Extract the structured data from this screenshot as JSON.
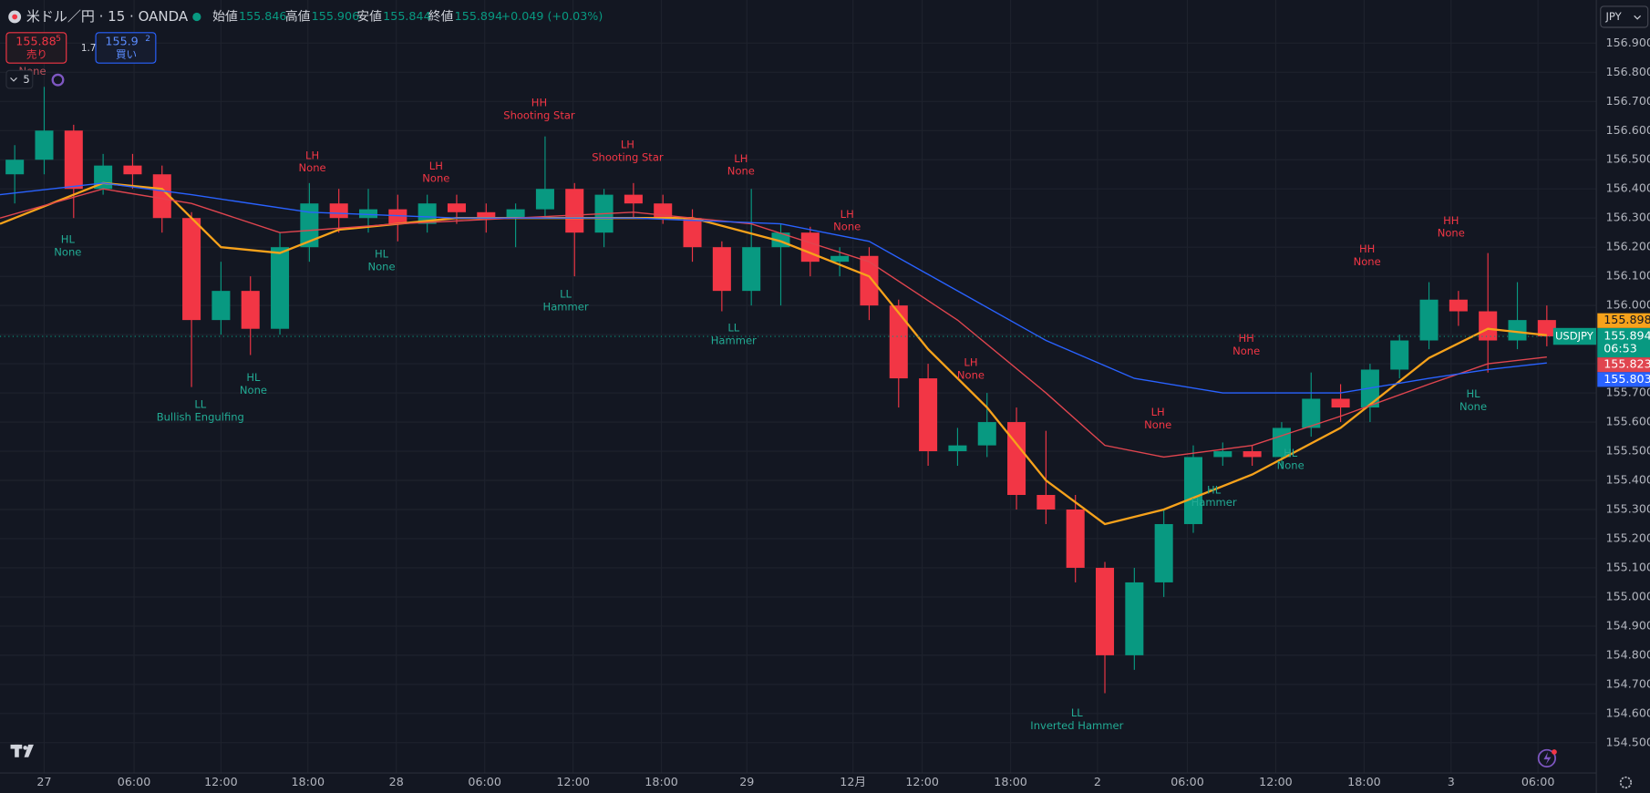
{
  "header": {
    "symbol": "米ドル／円 · 15 · OANDA",
    "open_label": "始値",
    "open": 155.846,
    "high_label": "高値",
    "high": 155.906,
    "low_label": "安値",
    "low": 155.844,
    "close_label": "終値",
    "close": 155.894,
    "change": "+0.049 (+0.03%)",
    "currency": "JPY"
  },
  "trade": {
    "sell_price": 155.88,
    "sell_pip": 5,
    "sell_label": "売り",
    "spread": 1.7,
    "buy_price": 155.9,
    "buy_pip": 2,
    "buy_label": "買い",
    "indicator_count": 5
  },
  "chart_data": {
    "type": "candlestick",
    "symbol_tag": "USDJPY",
    "countdown": "06:53",
    "up_color": "#089981",
    "down_color": "#f23645",
    "x": [
      -2,
      0,
      2,
      4,
      6,
      8,
      10,
      12,
      14,
      16,
      18,
      20,
      22,
      24,
      26,
      28,
      30,
      32,
      34,
      36,
      38,
      40,
      42,
      44,
      46,
      48,
      50,
      52,
      54,
      56,
      58,
      60,
      62,
      64,
      66,
      68,
      70,
      72,
      74,
      76,
      78,
      80,
      82,
      84,
      86,
      88,
      90,
      92,
      94,
      96,
      98,
      100,
      102
    ],
    "open": [
      156.45,
      156.5,
      156.6,
      156.4,
      156.48,
      156.45,
      156.3,
      155.95,
      156.05,
      155.92,
      156.2,
      156.35,
      156.3,
      156.33,
      156.28,
      156.35,
      156.32,
      156.3,
      156.33,
      156.4,
      156.25,
      156.38,
      156.35,
      156.3,
      156.2,
      156.05,
      156.2,
      156.25,
      156.15,
      156.17,
      156.0,
      155.75,
      155.5,
      155.52,
      155.6,
      155.35,
      155.3,
      155.1,
      154.8,
      155.05,
      155.25,
      155.48,
      155.5,
      155.48,
      155.58,
      155.68,
      155.65,
      155.78,
      155.88,
      156.02,
      155.98,
      155.88,
      155.95
    ],
    "high": [
      156.55,
      156.75,
      156.62,
      156.52,
      156.52,
      156.48,
      156.32,
      156.15,
      156.1,
      156.25,
      156.42,
      156.4,
      156.4,
      156.38,
      156.38,
      156.38,
      156.35,
      156.35,
      156.58,
      156.42,
      156.4,
      156.42,
      156.38,
      156.33,
      156.22,
      156.4,
      156.28,
      156.27,
      156.2,
      156.2,
      156.02,
      155.8,
      155.58,
      155.7,
      155.65,
      155.57,
      155.35,
      155.12,
      155.1,
      155.3,
      155.52,
      155.53,
      155.52,
      155.6,
      155.77,
      155.73,
      155.8,
      155.9,
      156.08,
      156.05,
      156.18,
      156.08,
      156.0
    ],
    "low": [
      156.35,
      156.45,
      156.3,
      156.38,
      156.4,
      156.25,
      155.72,
      155.9,
      155.83,
      155.9,
      156.15,
      156.25,
      156.25,
      156.22,
      156.25,
      156.28,
      156.25,
      156.2,
      156.3,
      156.1,
      156.2,
      156.3,
      156.28,
      156.15,
      155.98,
      156.0,
      156.0,
      156.1,
      156.1,
      155.95,
      155.65,
      155.45,
      155.45,
      155.48,
      155.3,
      155.25,
      155.05,
      154.67,
      154.75,
      155.0,
      155.22,
      155.45,
      155.45,
      155.44,
      155.55,
      155.6,
      155.6,
      155.75,
      155.85,
      155.93,
      155.77,
      155.85,
      155.86
    ],
    "close": [
      156.5,
      156.6,
      156.4,
      156.48,
      156.45,
      156.3,
      155.95,
      156.05,
      155.92,
      156.2,
      156.35,
      156.3,
      156.33,
      156.28,
      156.35,
      156.32,
      156.3,
      156.33,
      156.4,
      156.25,
      156.38,
      156.35,
      156.3,
      156.2,
      156.05,
      156.2,
      156.25,
      156.15,
      156.17,
      156.0,
      155.75,
      155.5,
      155.52,
      155.6,
      155.35,
      155.3,
      155.1,
      154.8,
      155.05,
      155.25,
      155.48,
      155.5,
      155.48,
      155.58,
      155.68,
      155.65,
      155.78,
      155.88,
      156.02,
      155.98,
      155.88,
      155.95,
      155.894
    ],
    "series": [
      {
        "color": "#f7a21b",
        "x": [
          -3,
          4,
          8,
          12,
          16,
          20,
          28,
          36,
          44,
          50,
          56,
          60,
          64,
          68,
          72,
          76,
          82,
          88,
          94,
          98,
          102
        ],
        "values": [
          156.28,
          156.42,
          156.4,
          156.2,
          156.18,
          156.26,
          156.3,
          156.3,
          156.3,
          156.22,
          156.1,
          155.85,
          155.65,
          155.4,
          155.25,
          155.3,
          155.42,
          155.58,
          155.82,
          155.92,
          155.898
        ]
      },
      {
        "color": "#e0454f",
        "x": [
          -3,
          4,
          10,
          16,
          24,
          32,
          40,
          48,
          56,
          62,
          68,
          72,
          76,
          82,
          88,
          94,
          98,
          102
        ],
        "values": [
          156.3,
          156.4,
          156.35,
          156.25,
          156.28,
          156.3,
          156.32,
          156.28,
          156.15,
          155.95,
          155.7,
          155.52,
          155.48,
          155.52,
          155.62,
          155.73,
          155.8,
          155.823
        ]
      },
      {
        "color": "#2962ff",
        "x": [
          -3,
          4,
          10,
          18,
          28,
          40,
          50,
          56,
          62,
          68,
          74,
          80,
          88,
          94,
          98,
          102
        ],
        "values": [
          156.38,
          156.42,
          156.38,
          156.32,
          156.3,
          156.3,
          156.28,
          156.22,
          156.05,
          155.88,
          155.75,
          155.7,
          155.7,
          155.75,
          155.78,
          155.803
        ]
      }
    ],
    "annotations": [
      {
        "pattern": "None",
        "x": -0.8,
        "price": 156.803,
        "color": "#b8505a"
      },
      {
        "pivot": "HL",
        "pattern": "None",
        "x": 1.6,
        "price": 156.225,
        "color": "#22ab94"
      },
      {
        "pivot": "LL",
        "pattern": "Bullish Engulfing",
        "x": 10.6,
        "price": 155.659,
        "color": "#22ab94"
      },
      {
        "pivot": "HL",
        "pattern": "None",
        "x": 14.2,
        "price": 155.752,
        "color": "#22ab94"
      },
      {
        "pivot": "LH",
        "pattern": "None",
        "x": 18.2,
        "price": 156.514,
        "color": "#f23645"
      },
      {
        "pivot": "HL",
        "pattern": "None",
        "x": 22.9,
        "price": 156.175,
        "color": "#22ab94"
      },
      {
        "pivot": "LH",
        "pattern": "None",
        "x": 26.6,
        "price": 156.478,
        "color": "#f23645"
      },
      {
        "pivot": "HH",
        "pattern": "Shooting Star",
        "x": 33.6,
        "price": 156.694,
        "color": "#f23645"
      },
      {
        "pivot": "LL",
        "pattern": "Hammer",
        "x": 35.4,
        "price": 156.038,
        "color": "#22ab94"
      },
      {
        "pivot": "LH",
        "pattern": "Shooting Star",
        "x": 39.6,
        "price": 156.55,
        "color": "#f23645"
      },
      {
        "pivot": "LL",
        "pattern": "Hammer",
        "x": 46.8,
        "price": 155.922,
        "color": "#22ab94"
      },
      {
        "pivot": "LH",
        "pattern": "None",
        "x": 47.3,
        "price": 156.503,
        "color": "#f23645"
      },
      {
        "pivot": "LH",
        "pattern": "None",
        "x": 54.5,
        "price": 156.312,
        "color": "#f23645"
      },
      {
        "pivot": "LH",
        "pattern": "None",
        "x": 62.9,
        "price": 155.803,
        "color": "#f23645"
      },
      {
        "pivot": "LL",
        "pattern": "Inverted Hammer",
        "x": 70.1,
        "price": 154.601,
        "color": "#22ab94"
      },
      {
        "pivot": "LH",
        "pattern": "None",
        "x": 75.6,
        "price": 155.633,
        "color": "#f23645"
      },
      {
        "pivot": "HL",
        "pattern": "Hammer",
        "x": 79.4,
        "price": 155.366,
        "color": "#22ab94"
      },
      {
        "pivot": "HH",
        "pattern": "None",
        "x": 81.6,
        "price": 155.886,
        "color": "#f23645"
      },
      {
        "pivot": "HL",
        "pattern": "None",
        "x": 84.6,
        "price": 155.493,
        "color": "#22ab94"
      },
      {
        "pivot": "HH",
        "pattern": "None",
        "x": 89.8,
        "price": 156.193,
        "color": "#f23645"
      },
      {
        "pivot": "HH",
        "pattern": "None",
        "x": 95.5,
        "price": 156.29,
        "color": "#f23645"
      },
      {
        "pivot": "HL",
        "pattern": "None",
        "x": 97,
        "price": 155.695,
        "color": "#22ab94"
      }
    ],
    "xlim": [
      -3,
      105.36
    ],
    "ylim": [
      154.396,
      157.048
    ],
    "xticks": [
      {
        "value": 0,
        "label": "27"
      },
      {
        "value": 6.1,
        "label": "06:00"
      },
      {
        "value": 12,
        "label": "12:00"
      },
      {
        "value": 17.9,
        "label": "18:00"
      },
      {
        "value": 23.9,
        "label": "28"
      },
      {
        "value": 29.9,
        "label": "06:00"
      },
      {
        "value": 35.9,
        "label": "12:00"
      },
      {
        "value": 41.9,
        "label": "18:00"
      },
      {
        "value": 47.7,
        "label": "29"
      },
      {
        "value": 54.9,
        "label": "12月"
      },
      {
        "value": 59.6,
        "label": "12:00"
      },
      {
        "value": 65.6,
        "label": "18:00"
      },
      {
        "value": 71.5,
        "label": "2"
      },
      {
        "value": 77.6,
        "label": "06:00"
      },
      {
        "value": 83.6,
        "label": "12:00"
      },
      {
        "value": 89.6,
        "label": "18:00"
      },
      {
        "value": 95.5,
        "label": "3"
      },
      {
        "value": 101.4,
        "label": "06:00"
      }
    ],
    "yticks": [
      {
        "value": 154.5,
        "label": "154.500"
      },
      {
        "value": 154.6,
        "label": "154.600"
      },
      {
        "value": 154.7,
        "label": "154.700"
      },
      {
        "value": 154.8,
        "label": "154.800"
      },
      {
        "value": 154.9,
        "label": "154.900"
      },
      {
        "value": 155.0,
        "label": "155.000"
      },
      {
        "value": 155.1,
        "label": "155.100"
      },
      {
        "value": 155.2,
        "label": "155.200"
      },
      {
        "value": 155.3,
        "label": "155.300"
      },
      {
        "value": 155.4,
        "label": "155.400"
      },
      {
        "value": 155.5,
        "label": "155.500"
      },
      {
        "value": 155.6,
        "label": "155.600"
      },
      {
        "value": 155.7,
        "label": "155.700"
      },
      {
        "value": 155.8,
        "label": "155.800"
      },
      {
        "value": 155.9,
        "label": "155.900"
      },
      {
        "value": 156.0,
        "label": "156.000"
      },
      {
        "value": 156.1,
        "label": "156.100"
      },
      {
        "value": 156.2,
        "label": "156.200"
      },
      {
        "value": 156.3,
        "label": "156.300"
      },
      {
        "value": 156.4,
        "label": "156.400"
      },
      {
        "value": 156.5,
        "label": "156.500"
      },
      {
        "value": 156.6,
        "label": "156.600"
      },
      {
        "value": 156.7,
        "label": "156.700"
      },
      {
        "value": 156.8,
        "label": "156.800"
      },
      {
        "value": 156.9,
        "label": "156.900"
      }
    ],
    "grid": true
  }
}
